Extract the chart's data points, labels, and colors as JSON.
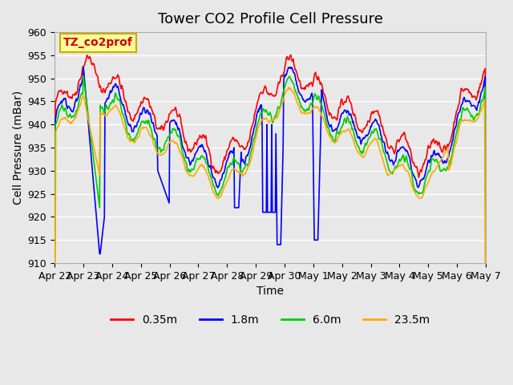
{
  "title": "Tower CO2 Profile Cell Pressure",
  "ylabel": "Cell Pressure (mBar)",
  "xlabel": "Time",
  "series_labels": [
    "0.35m",
    "1.8m",
    "6.0m",
    "23.5m"
  ],
  "series_colors": [
    "#ff0000",
    "#0000ff",
    "#00cc00",
    "#ffaa00"
  ],
  "series_linewidths": [
    1.2,
    1.2,
    1.2,
    1.2
  ],
  "ylim": [
    910,
    960
  ],
  "yticks": [
    910,
    915,
    920,
    925,
    930,
    935,
    940,
    945,
    950,
    955,
    960
  ],
  "xtick_labels": [
    "Apr 22",
    "Apr 23",
    "Apr 24",
    "Apr 25",
    "Apr 26",
    "Apr 27",
    "Apr 28",
    "Apr 29",
    "Apr 30",
    "May 1",
    "May 2",
    "May 3",
    "May 4",
    "May 5",
    "May 6",
    "May 7"
  ],
  "background_color": "#e8e8e8",
  "plot_bg_color": "#e8e8e8",
  "grid_color": "#ffffff",
  "annotation_text": "TZ_co2prof",
  "annotation_bg": "#ffff99",
  "annotation_border": "#ccaa00",
  "title_fontsize": 13,
  "axis_label_fontsize": 10,
  "tick_fontsize": 9,
  "legend_fontsize": 10
}
